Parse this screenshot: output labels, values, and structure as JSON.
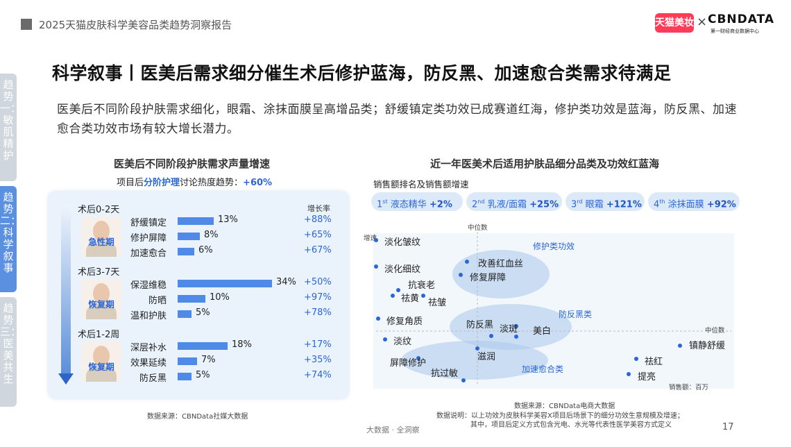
{
  "header": {
    "report_title": "2025天猫皮肤科学美容品类趋势洞察报告",
    "logo_tmall": "天猫美妆",
    "logo_x": "×",
    "logo_cbn": "CBNDATA",
    "logo_cbn_sub": "第一财经商业数据中心"
  },
  "main_title": "科学叙事丨医美后需求细分催生术后修护蓝海，防反黑、加速愈合类需求待满足",
  "description": "医美后不同阶段护肤需求细化，眼霜、涂抹面膜呈高增品类；舒缓镇定类功效已成赛道红海，修护类功效是蓝海，防反黑、加速愈合类功效市场有较大增长潜力。",
  "side_tabs": [
    {
      "label": "趋势一：敏肌精护"
    },
    {
      "label": "趋势二：科学叙事"
    },
    {
      "label": "趋势三：医美共生"
    }
  ],
  "left_panel": {
    "title": "医美后不同阶段护肤需求声量增速",
    "subtitle_prefix": "项目后",
    "subtitle_highlight": "分阶护理",
    "subtitle_suffix": "讨论热度趋势：",
    "subtitle_value": "+60%",
    "growth_header": "增长率",
    "stages": [
      {
        "title": "术后0-2天",
        "badge": "急性期",
        "rows": [
          {
            "label": "舒缓镇定",
            "share": "13%",
            "value": 13,
            "growth": "+88%"
          },
          {
            "label": "修护屏障",
            "share": "8%",
            "value": 8,
            "growth": "+65%"
          },
          {
            "label": "加速愈合",
            "share": "6%",
            "value": 6,
            "growth": "+67%"
          }
        ]
      },
      {
        "title": "术后3-7天",
        "badge": "恢复期",
        "rows": [
          {
            "label": "保湿维稳",
            "share": "34%",
            "value": 34,
            "growth": "+50%"
          },
          {
            "label": "防晒",
            "share": "10%",
            "value": 10,
            "growth": "+97%"
          },
          {
            "label": "温和护肤",
            "share": "5%",
            "value": 5,
            "growth": "+78%"
          }
        ]
      },
      {
        "title": "术后1-2周",
        "badge": "恢复期",
        "rows": [
          {
            "label": "深层补水",
            "share": "18%",
            "value": 18,
            "growth": "+17%"
          },
          {
            "label": "效果延续",
            "share": "7%",
            "value": 7,
            "growth": "+35%"
          },
          {
            "label": "防反黑",
            "share": "5%",
            "value": 5,
            "growth": "+74%"
          }
        ]
      }
    ],
    "source": "数据来源：CBNData社媒大数据"
  },
  "right_panel": {
    "title": "近一年医美术后适用护肤品细分品类及功效红蓝海",
    "subtitle": "销售额排名及销售额增速",
    "pills": [
      {
        "rank": "1",
        "suffix": "st",
        "name": "液态精华",
        "growth": "+2%"
      },
      {
        "rank": "2",
        "suffix": "nd",
        "name": "乳液/面霜",
        "growth": "+25%"
      },
      {
        "rank": "3",
        "suffix": "rd",
        "name": "眼霜",
        "growth": "+121%"
      },
      {
        "rank": "4",
        "suffix": "th",
        "name": "涂抹面膜",
        "growth": "+92%"
      }
    ],
    "axis_top": "中位数",
    "axis_right": "中位数",
    "y_axis_label": "增速",
    "x_axis_label": "销售额：百万",
    "clusters": {
      "repair": "修护类功效",
      "anti_dark": "防反黑类",
      "healing": "加速愈合类"
    },
    "points": [
      "淡化皱纹",
      "淡化细纹",
      "改善红血丝",
      "修复屏障",
      "抗衰老",
      "祛黄",
      "祛皱",
      "修复角质",
      "防反黑",
      "淡斑",
      "美白",
      "淡纹",
      "镇静舒缓",
      "屏障修护",
      "滋润",
      "祛红",
      "抗过敏",
      "提亮"
    ],
    "source1": "数据来源：CBNData电商大数据",
    "source2": "数据说明：以上功效为皮肤科学美容X项目后场景下的细分功效生意规模及增速；",
    "source3": "其中，项目后定义方式包含光电、水光等代表性医学美容方式定义"
  },
  "footer": {
    "center": "大数据 · 全洞察",
    "page": "17"
  },
  "colors": {
    "accent": "#2b66d9",
    "bar": "#4f8ae6",
    "tab_active": "#5b8fe0",
    "tab_inactive": "#cfd6dd",
    "brand_tmall": "#ff3b57"
  }
}
